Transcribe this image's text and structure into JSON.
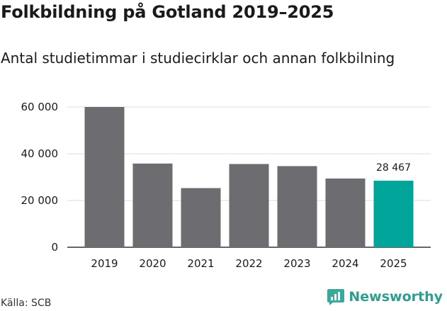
{
  "title": "Folkbildning på Gotland 2019–2025",
  "subtitle": "Antal studietimmar i studiecirklar och annan folkbilning",
  "source": "Källa: SCB",
  "brand": {
    "name": "Newsworthy",
    "logo_icon": "newsworthy-logo-icon"
  },
  "colors": {
    "bar": "#6d6c70",
    "highlight": "#00a499",
    "brand": "#2f9e8f",
    "grid": "#dddddd"
  },
  "chart_data": {
    "type": "bar",
    "title": "Folkbildning på Gotland 2019–2025",
    "subtitle": "Antal studietimmar i studiecirklar och annan folkbilning",
    "categories": [
      "2019",
      "2020",
      "2021",
      "2022",
      "2023",
      "2024",
      "2025"
    ],
    "values": [
      60000,
      35800,
      25300,
      35600,
      34700,
      29400,
      28467
    ],
    "highlight_index": 6,
    "data_labels": {
      "6": "28 467"
    },
    "ylim": [
      0,
      60000
    ],
    "yticks": [
      0,
      20000,
      40000,
      60000
    ],
    "ytick_labels": [
      "0",
      "20 000",
      "40 000",
      "60 000"
    ],
    "xlabel": "",
    "ylabel": "",
    "grid": "horizontal"
  }
}
